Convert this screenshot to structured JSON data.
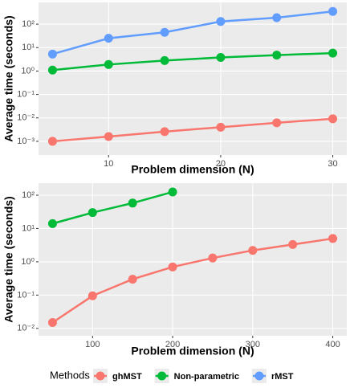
{
  "chart_data": [
    {
      "type": "line",
      "xlabel": "Problem dimension (N)",
      "ylabel": "Average time (seconds)",
      "x": [
        5,
        10,
        15,
        20,
        25,
        30
      ],
      "xlim": [
        3.75,
        31.25
      ],
      "xticks": [
        10,
        20,
        30
      ],
      "ylim": [
        0.00026,
        850
      ],
      "log_y": true,
      "grid": true,
      "yticks": [
        {
          "value": 0.001,
          "label": "10⁻³"
        },
        {
          "value": 0.01,
          "label": "10⁻²"
        },
        {
          "value": 0.1,
          "label": "10⁻¹"
        },
        {
          "value": 1,
          "label": "10⁰"
        },
        {
          "value": 10,
          "label": "10¹"
        },
        {
          "value": 100,
          "label": "10²"
        }
      ],
      "series": [
        {
          "name": "ghMST",
          "color": "#f8766d",
          "values": [
            0.001,
            0.0016,
            0.0026,
            0.004,
            0.0062,
            0.0092
          ]
        },
        {
          "name": "Non-parametric",
          "color": "#00ba38",
          "values": [
            1.1,
            1.9,
            2.8,
            3.8,
            4.8,
            5.8
          ]
        },
        {
          "name": "rMST",
          "color": "#619cff",
          "values": [
            5.3,
            25,
            45,
            130,
            190,
            350
          ]
        }
      ]
    },
    {
      "type": "line",
      "xlabel": "Problem dimension (N)",
      "ylabel": "Average time (seconds)",
      "x": [
        50,
        100,
        150,
        200,
        250,
        300,
        350,
        400
      ],
      "xlim": [
        32.5,
        417.5
      ],
      "xticks": [
        100,
        200,
        300,
        400
      ],
      "ylim": [
        0.006,
        230
      ],
      "log_y": true,
      "grid": true,
      "yticks": [
        {
          "value": 0.01,
          "label": "10⁻²"
        },
        {
          "value": 0.1,
          "label": "10⁻¹"
        },
        {
          "value": 1,
          "label": "10⁰"
        },
        {
          "value": 10,
          "label": "10¹"
        },
        {
          "value": 100,
          "label": "10²"
        }
      ],
      "series": [
        {
          "name": "ghMST",
          "color": "#f8766d",
          "values": [
            0.015,
            0.095,
            0.3,
            0.7,
            1.3,
            2.2,
            3.3,
            5.0
          ]
        },
        {
          "name": "Non-parametric",
          "color": "#00ba38",
          "values": [
            14,
            30,
            58,
            125,
            null,
            null,
            null,
            null
          ]
        }
      ]
    }
  ],
  "legend": {
    "title": "Methods"
  }
}
